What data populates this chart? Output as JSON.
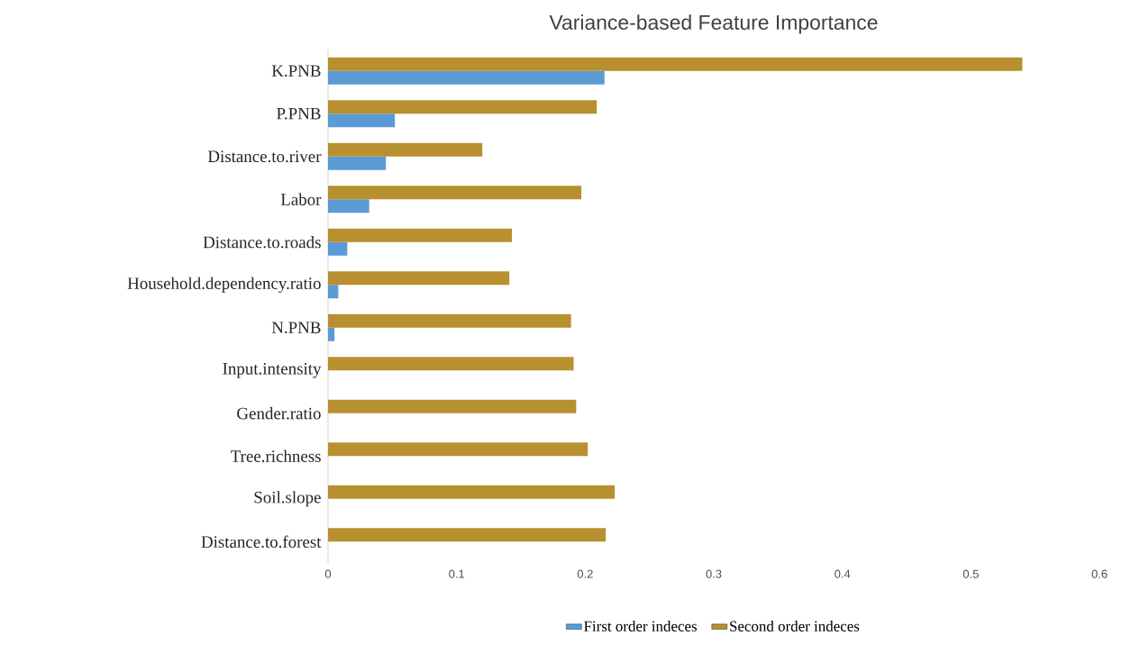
{
  "chart_data": {
    "type": "bar",
    "orientation": "horizontal",
    "title": "Variance-based Feature Importance",
    "categories": [
      "K.PNB",
      "P.PNB",
      "Distance.to.river",
      "Labor",
      "Distance.to.roads",
      "Household.dependency.ratio",
      "N.PNB",
      "Input.intensity",
      "Gender.ratio",
      "Tree.richness",
      "Soil.slope",
      "Distance.to.forest"
    ],
    "series": [
      {
        "name": "First order indeces",
        "color": "#5b9bd5",
        "values": [
          0.215,
          0.052,
          0.045,
          0.032,
          0.015,
          0.008,
          0.005,
          0,
          0,
          0,
          0,
          0
        ]
      },
      {
        "name": "Second order indeces",
        "color": "#b8902f",
        "values": [
          0.54,
          0.209,
          0.12,
          0.197,
          0.143,
          0.141,
          0.189,
          0.191,
          0.193,
          0.202,
          0.223,
          0.216
        ]
      }
    ],
    "xlim": [
      0,
      0.6
    ],
    "xticks": [
      0,
      0.1,
      0.2,
      0.3,
      0.4,
      0.5,
      0.6
    ],
    "grid": false,
    "legend": "bottom"
  }
}
